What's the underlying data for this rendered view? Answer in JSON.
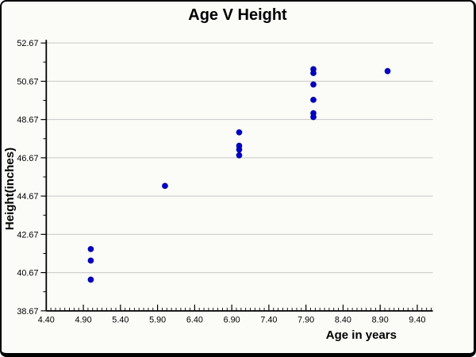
{
  "chart_data": {
    "type": "scatter",
    "title": "Age V Height",
    "xlabel": "Age in years",
    "ylabel": "Height(inches)",
    "xlim": [
      4.4,
      9.61
    ],
    "ylim": [
      38.67,
      52.67
    ],
    "x_tick_values": [
      4.4,
      4.9,
      5.4,
      5.9,
      6.4,
      6.9,
      7.4,
      7.9,
      8.4,
      8.9,
      9.4
    ],
    "x_tick_labels": [
      "4.40",
      "4.90",
      "5.40",
      "5.90",
      "6.40",
      "6.90",
      "7.40",
      "7.90",
      "8.40",
      "8.90",
      "9.40"
    ],
    "y_tick_values": [
      38.67,
      40.67,
      42.67,
      44.67,
      46.67,
      48.67,
      50.67,
      52.67
    ],
    "y_tick_labels": [
      "38.67",
      "40.67",
      "42.67",
      "44.67",
      "46.67",
      "48.67",
      "50.67",
      "52.67"
    ],
    "x_minor_divisions": 8,
    "y_minor_divisions": 2,
    "grid": "horizontal-only",
    "legend_position": "none",
    "marker": {
      "shape": "circle",
      "color": "#0000CC",
      "edge_color": "#000099",
      "radius": 3.5
    },
    "colors": {
      "grid": "#C8C8C8",
      "axis": "#000000",
      "background": "#FBFBF7",
      "tick_label": "#000000"
    },
    "series": [
      {
        "name": "height",
        "points": [
          [
            5.0,
            41.9
          ],
          [
            5.0,
            41.3
          ],
          [
            5.0,
            40.3
          ],
          [
            6.0,
            45.2
          ],
          [
            7.0,
            48.0
          ],
          [
            7.0,
            47.3
          ],
          [
            7.0,
            47.1
          ],
          [
            7.0,
            46.8
          ],
          [
            8.0,
            51.3
          ],
          [
            8.0,
            51.1
          ],
          [
            8.0,
            50.5
          ],
          [
            8.0,
            49.7
          ],
          [
            8.0,
            49.0
          ],
          [
            8.0,
            48.8
          ],
          [
            9.0,
            51.2
          ]
        ]
      }
    ]
  }
}
